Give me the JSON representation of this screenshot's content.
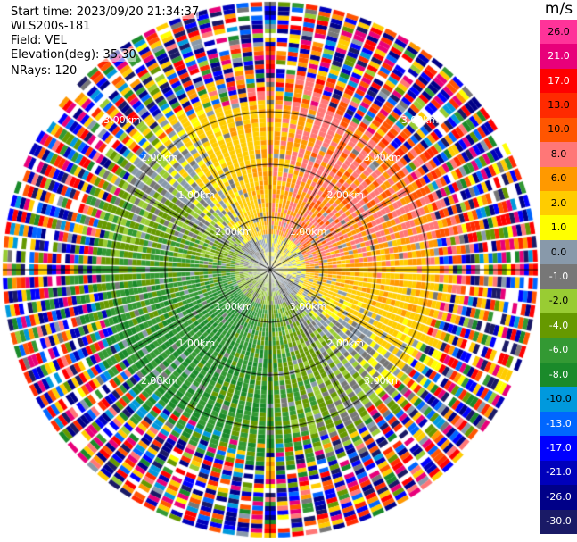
{
  "header": {
    "start_time": "Start time: 2023/09/20 21:34:37",
    "site": "WLS200s-181",
    "field": "Field: VEL",
    "elevation": "Elevation(deg): 35.30",
    "nrays": "NRays: 120"
  },
  "colorbar": {
    "unit": "m/s",
    "levels": [
      "26.0",
      "21.0",
      "17.0",
      "13.0",
      "10.0",
      "8.0",
      "6.0",
      "2.0",
      "1.0",
      "0.0",
      "-1.0",
      "-2.0",
      "-4.0",
      "-6.0",
      "-8.0",
      "-10.0",
      "-13.0",
      "-17.0",
      "-21.0",
      "-26.0",
      "-30.0"
    ],
    "colors": [
      "#ff3399",
      "#e8007a",
      "#ff0000",
      "#ff2a00",
      "#ff5500",
      "#ff7777",
      "#ff9900",
      "#ffcc00",
      "#ffff00",
      "#8899aa",
      "#777777",
      "#99cc33",
      "#669900",
      "#339933",
      "#1a8a2a",
      "#0099dd",
      "#0066ff",
      "#0000ff",
      "#0000bb",
      "#000088",
      "#1a1a66"
    ]
  },
  "chart_data": {
    "type": "heatmap",
    "projection": "polar PPI",
    "field": "VEL",
    "unit": "m/s",
    "rays": 120,
    "range_rings_km": [
      1.0,
      2.0,
      3.0
    ],
    "ring_labels": [
      "1.00km",
      "2.00km",
      "3.00km",
      "1.00km",
      "1.00km",
      "1.00km",
      "2.00km",
      "2.00km",
      "2.00km",
      "2.00km",
      "3.00km",
      "3.00km",
      "3.00km",
      "3.00km"
    ],
    "pattern": {
      "north_east_sector": "positive velocities 2–17 m/s (yellow/orange/red)",
      "south_west_sector": "negative velocities -2 to -8 m/s (green)",
      "outer_ranges": "noisy, mixed values across full scale"
    }
  }
}
